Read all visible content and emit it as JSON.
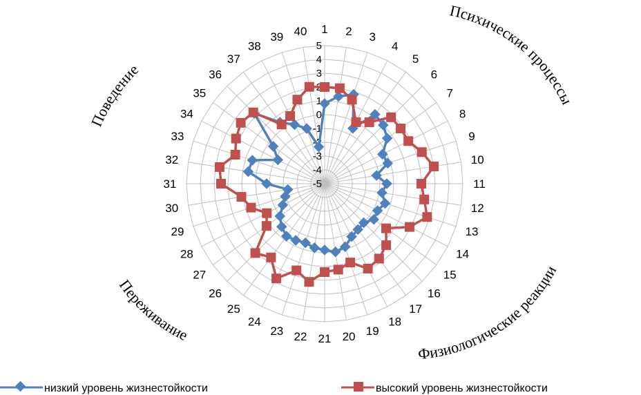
{
  "chart_data": {
    "type": "radar",
    "categories": [
      "1",
      "2",
      "3",
      "4",
      "5",
      "6",
      "7",
      "8",
      "9",
      "10",
      "11",
      "12",
      "13",
      "14",
      "15",
      "16",
      "17",
      "18",
      "19",
      "20",
      "21",
      "22",
      "23",
      "24",
      "25",
      "26",
      "27",
      "28",
      "29",
      "30",
      "31",
      "32",
      "33",
      "34",
      "35",
      "36",
      "37",
      "38",
      "39",
      "40"
    ],
    "rlim": [
      -5,
      5
    ],
    "ticks": [
      "-5",
      "-4",
      "-3",
      "-2",
      "-1",
      "0",
      "1",
      "2",
      "3",
      "4",
      "5"
    ],
    "grid": true,
    "legend": "bottom",
    "series": [
      {
        "name": "низкий уровень жизнестойкости",
        "color": "#4f81bd",
        "marker": "diamond",
        "values": [
          0.8,
          1.4,
          1.8,
          -0.5,
          1.2,
          1.0,
          0.6,
          -0.3,
          -0.2,
          -1.2,
          -0.5,
          -0.8,
          -0.4,
          -0.7,
          -0.6,
          -1.0,
          -0.9,
          -0.7,
          -0.2,
          0.0,
          -0.2,
          -0.3,
          -0.5,
          -0.4,
          -0.3,
          -0.6,
          -1.0,
          -1.6,
          -2.0,
          -2.3,
          -0.8,
          0.6,
          0.5,
          -1.2,
          -0.4,
          2.2,
          0.5,
          -0.2,
          -0.8,
          -2.3
        ]
      },
      {
        "name": "высокий уровень жизнестойкости",
        "color": "#c0504d",
        "marker": "square",
        "values": [
          2.0,
          2.0,
          1.4,
          0.0,
          0.5,
          1.8,
          1.8,
          1.8,
          2.4,
          3.0,
          2.0,
          2.3,
          2.8,
          1.9,
          0.5,
          1.3,
          1.7,
          1.9,
          1.0,
          1.3,
          1.4,
          2.2,
          1.6,
          2.7,
          1.6,
          2.1,
          0.2,
          -0.3,
          0.6,
          1.1,
          2.5,
          2.7,
          1.8,
          2.2,
          2.5,
          2.3,
          0.3,
          0.5,
          1.4,
          2.1
        ]
      }
    ],
    "groups": [
      "Психические процессы",
      "Физиологические реакции",
      "Переживание",
      "Поведение"
    ]
  }
}
